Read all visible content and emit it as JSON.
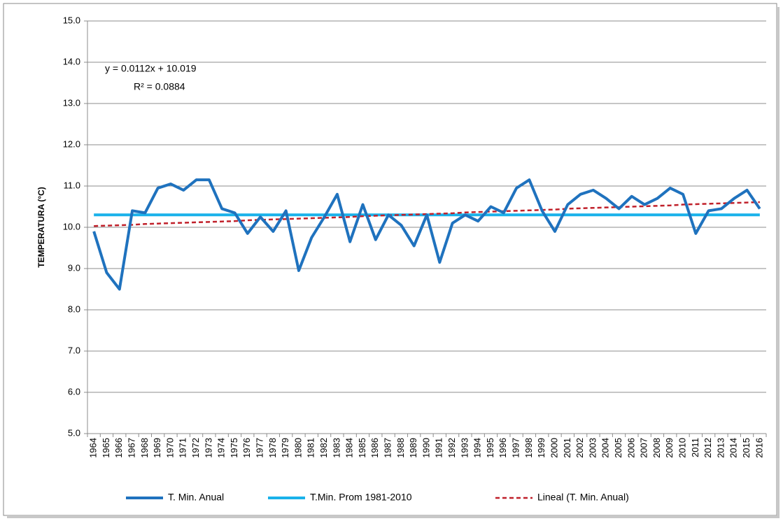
{
  "chart_data": {
    "type": "line",
    "y_label": "TEMPERATURA   (°C)",
    "annotations": [
      "y = 0.0112x + 10.019",
      "R² = 0.0884"
    ],
    "categories": [
      "1964",
      "1965",
      "1966",
      "1967",
      "1968",
      "1969",
      "1970",
      "1971",
      "1972",
      "1973",
      "1974",
      "1975",
      "1976",
      "1977",
      "1978",
      "1979",
      "1980",
      "1981",
      "1982",
      "1983",
      "1984",
      "1985",
      "1986",
      "1987",
      "1988",
      "1989",
      "1990",
      "1991",
      "1992",
      "1993",
      "1994",
      "1995",
      "1996",
      "1997",
      "1998",
      "1999",
      "2000",
      "2001",
      "2002",
      "2003",
      "2004",
      "2005",
      "2006",
      "2007",
      "2008",
      "2009",
      "2010",
      "2011",
      "2012",
      "2013",
      "2014",
      "2015",
      "2016"
    ],
    "series": [
      {
        "name": "T. Min. Anual",
        "color": "#1f72be",
        "dash": false,
        "values": [
          9.9,
          8.9,
          8.5,
          10.4,
          10.35,
          10.95,
          11.05,
          10.9,
          11.15,
          11.15,
          10.45,
          10.35,
          9.85,
          10.25,
          9.9,
          10.4,
          8.95,
          9.75,
          10.25,
          10.8,
          9.65,
          10.55,
          9.7,
          10.3,
          10.05,
          9.55,
          10.3,
          9.15,
          10.1,
          10.3,
          10.15,
          10.5,
          10.35,
          10.95,
          11.15,
          10.4,
          9.9,
          10.55,
          10.8,
          10.9,
          10.7,
          10.45,
          10.75,
          10.55,
          10.7,
          10.95,
          10.8,
          9.85,
          10.4,
          10.45,
          10.7,
          10.9,
          10.45
        ]
      },
      {
        "name": "T.Min. Prom 1981-2010",
        "color": "#1ab2ea",
        "dash": false,
        "values": [
          10.3,
          10.3,
          10.3,
          10.3,
          10.3,
          10.3,
          10.3,
          10.3,
          10.3,
          10.3,
          10.3,
          10.3,
          10.3,
          10.3,
          10.3,
          10.3,
          10.3,
          10.3,
          10.3,
          10.3,
          10.3,
          10.3,
          10.3,
          10.3,
          10.3,
          10.3,
          10.3,
          10.3,
          10.3,
          10.3,
          10.3,
          10.3,
          10.3,
          10.3,
          10.3,
          10.3,
          10.3,
          10.3,
          10.3,
          10.3,
          10.3,
          10.3,
          10.3,
          10.3,
          10.3,
          10.3,
          10.3,
          10.3,
          10.3,
          10.3,
          10.3,
          10.3,
          10.3
        ]
      },
      {
        "name": "Lineal (T. Min. Anual)",
        "color": "#c0202a",
        "dash": true,
        "values": [
          10.03,
          10.04,
          10.05,
          10.06,
          10.08,
          10.09,
          10.1,
          10.11,
          10.12,
          10.13,
          10.14,
          10.15,
          10.17,
          10.18,
          10.19,
          10.2,
          10.21,
          10.22,
          10.23,
          10.24,
          10.25,
          10.27,
          10.28,
          10.29,
          10.3,
          10.31,
          10.32,
          10.33,
          10.34,
          10.36,
          10.37,
          10.38,
          10.39,
          10.4,
          10.41,
          10.42,
          10.43,
          10.45,
          10.46,
          10.47,
          10.48,
          10.49,
          10.5,
          10.51,
          10.52,
          10.53,
          10.55,
          10.56,
          10.57,
          10.58,
          10.59,
          10.6,
          10.61
        ]
      }
    ],
    "ylim": [
      5,
      15
    ],
    "yticks": [
      {
        "value": 5,
        "label": "5.0"
      },
      {
        "value": 6,
        "label": "6.0"
      },
      {
        "value": 7,
        "label": "7.0"
      },
      {
        "value": 8,
        "label": "8.0"
      },
      {
        "value": 9,
        "label": "9.0"
      },
      {
        "value": 10,
        "label": "10.0"
      },
      {
        "value": 11,
        "label": "11.0"
      },
      {
        "value": 12,
        "label": "12.0"
      },
      {
        "value": 13,
        "label": "13.0"
      },
      {
        "value": 14,
        "label": "14.0"
      },
      {
        "value": 15,
        "label": "15.0"
      }
    ],
    "grid": true,
    "legend": "bottom"
  }
}
